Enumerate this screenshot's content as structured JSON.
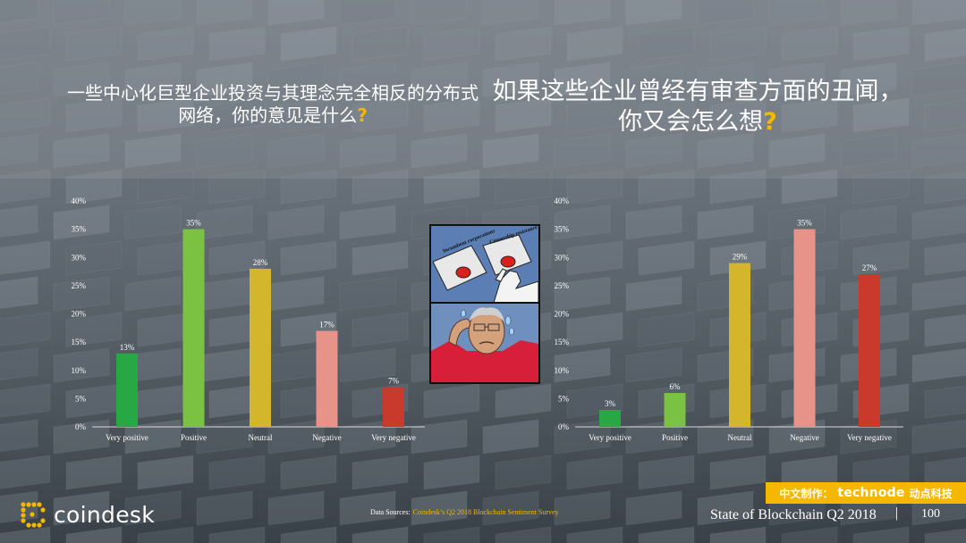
{
  "slide": {
    "title_left": "一些中心化巨型企业投资与其理念完全相反的分布式网络，你的意见是什么",
    "title_right": "如果这些企业曾经有审查方面的丑闻，你又会怎么想",
    "question_mark": "?"
  },
  "meme": {
    "button_left": "Incumbent corporations",
    "button_right": "Censorship resistance"
  },
  "footer": {
    "logo_text": "coindesk",
    "source_prefix": "Data Sources:",
    "source_link": "Coindesk’s Q2 2018 Blockchain Sentiment Survey",
    "title": "State of Blockchain Q2 2018",
    "separator": "|",
    "page_number": "100",
    "credit_prefix": "中文制作：",
    "credit_brand": "technode",
    "credit_suffix": "动点科技"
  },
  "colors": {
    "accent_yellow": "#f5b700",
    "very_positive": "#27a845",
    "positive": "#7cc242",
    "neutral": "#d3b62b",
    "negative": "#e8938a",
    "very_negative": "#c9392c"
  },
  "chart_data": [
    {
      "type": "bar",
      "categories": [
        "Very positive",
        "Positive",
        "Neutral",
        "Negative",
        "Very negative"
      ],
      "values": [
        13,
        35,
        28,
        17,
        7
      ],
      "value_labels": [
        "13%",
        "35%",
        "28%",
        "17%",
        "7%"
      ],
      "yticks": [
        "0%",
        "5%",
        "10%",
        "15%",
        "20%",
        "25%",
        "30%",
        "35%",
        "40%"
      ],
      "ylim": [
        0,
        40
      ],
      "bar_colors": [
        "#27a845",
        "#7cc242",
        "#d3b62b",
        "#e8938a",
        "#c9392c"
      ],
      "grid": false
    },
    {
      "type": "bar",
      "categories": [
        "Very positive",
        "Positive",
        "Neutral",
        "Negative",
        "Very negative"
      ],
      "values": [
        3,
        6,
        29,
        35,
        27
      ],
      "value_labels": [
        "3%",
        "6%",
        "29%",
        "35%",
        "27%"
      ],
      "yticks": [
        "0%",
        "5%",
        "10%",
        "15%",
        "20%",
        "25%",
        "30%",
        "35%",
        "40%"
      ],
      "ylim": [
        0,
        40
      ],
      "bar_colors": [
        "#27a845",
        "#7cc242",
        "#d3b62b",
        "#e8938a",
        "#c9392c"
      ],
      "grid": false
    }
  ]
}
